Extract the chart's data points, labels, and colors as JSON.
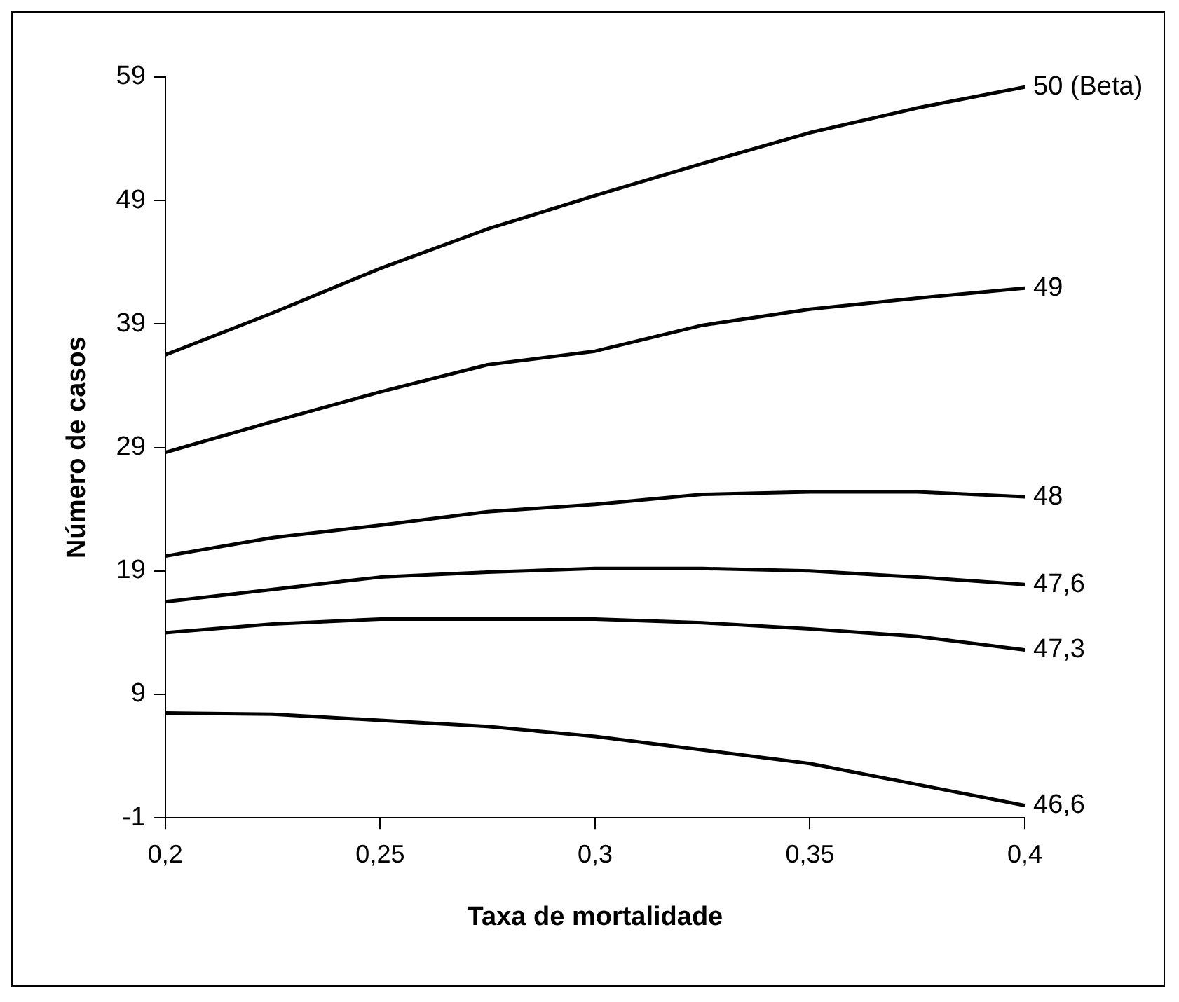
{
  "chart_data": {
    "type": "line",
    "xlabel": "Taxa de mortalidade",
    "ylabel": "Número de casos",
    "x": [
      0.2,
      0.225,
      0.25,
      0.275,
      0.3,
      0.325,
      0.35,
      0.375,
      0.4
    ],
    "series": [
      {
        "name": "50 (Beta)",
        "color": "#000000",
        "values": [
          36.5,
          39.9,
          43.5,
          46.7,
          49.4,
          52,
          54.5,
          56.5,
          58.2
        ]
      },
      {
        "name": "49",
        "color": "#000000",
        "values": [
          28.6,
          31.1,
          33.5,
          35.7,
          36.8,
          38.9,
          40.2,
          41.1,
          41.9
        ]
      },
      {
        "name": "48",
        "color": "#000000",
        "values": [
          20.2,
          21.7,
          22.7,
          23.8,
          24.4,
          25.2,
          25.4,
          25.4,
          25.0
        ]
      },
      {
        "name": "47,6",
        "color": "#000000",
        "values": [
          16.5,
          17.5,
          18.5,
          18.9,
          19.2,
          19.2,
          19.0,
          18.5,
          17.9
        ]
      },
      {
        "name": "47,3",
        "color": "#000000",
        "values": [
          14.0,
          14.7,
          15.1,
          15.1,
          15.1,
          14.8,
          14.3,
          13.7,
          12.6
        ]
      },
      {
        "name": "46,6",
        "color": "#000000",
        "values": [
          7.5,
          7.4,
          6.9,
          6.4,
          5.6,
          4.5,
          3.4,
          1.7,
          0
        ]
      }
    ],
    "xlim": [
      0.2,
      0.4
    ],
    "xticks": [
      {
        "value": 0.2,
        "label": "0,2"
      },
      {
        "value": 0.25,
        "label": "0,25"
      },
      {
        "value": 0.3,
        "label": "0,3"
      },
      {
        "value": 0.35,
        "label": "0,35"
      },
      {
        "value": 0.4,
        "label": "0,4"
      }
    ],
    "ylim": [
      -1,
      59
    ],
    "yticks": [
      -1,
      9,
      19,
      29,
      39,
      49,
      59
    ],
    "grid": false,
    "legend": false,
    "marker": "none",
    "line_style": "solid"
  }
}
